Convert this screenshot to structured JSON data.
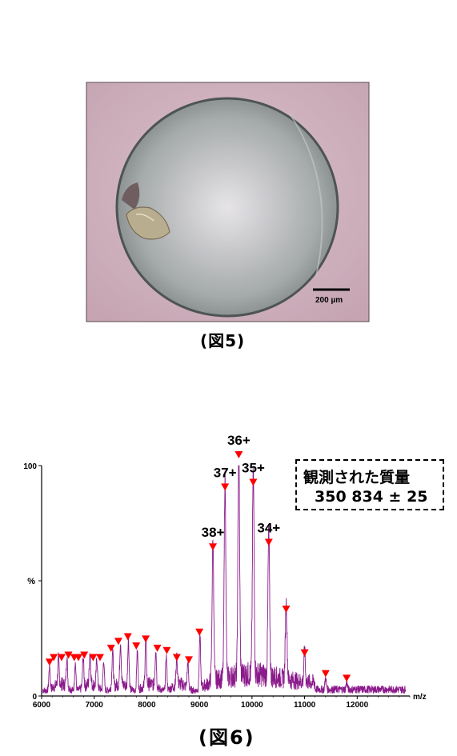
{
  "figure5": {
    "caption": "(図5)",
    "scale_bar_label": "200 µm"
  },
  "figure6": {
    "caption": "(図6)",
    "mass_box": {
      "line1": "観測された質量",
      "line2": "350 834 ± 25"
    },
    "chart_data": {
      "type": "line",
      "title": "",
      "xlabel": "m/z",
      "ylabel": "%",
      "xlim": [
        6000,
        13000
      ],
      "ylim": [
        0,
        100
      ],
      "x_ticks": [
        "6000",
        "7000",
        "8000",
        "9000",
        "10000",
        "11000",
        "12000"
      ],
      "y_ticks": [
        "0",
        "100"
      ],
      "y_mid_tick": "%",
      "colors": {
        "trace": "#8b1a8b",
        "markers": "#ff0000"
      },
      "charge_labels": [
        {
          "label": "38+",
          "mz": 9257,
          "intensity": 60
        },
        {
          "label": "37+",
          "mz": 9487,
          "intensity": 86
        },
        {
          "label": "36+",
          "mz": 9749,
          "intensity": 100
        },
        {
          "label": "35+",
          "mz": 10024,
          "intensity": 88
        },
        {
          "label": "34+",
          "mz": 10319,
          "intensity": 62
        }
      ],
      "peaks": [
        {
          "mz": 6150,
          "intensity": 10
        },
        {
          "mz": 6320,
          "intensity": 11
        },
        {
          "mz": 6480,
          "intensity": 13
        },
        {
          "mz": 6640,
          "intensity": 12
        },
        {
          "mz": 6790,
          "intensity": 13
        },
        {
          "mz": 6920,
          "intensity": 14
        },
        {
          "mz": 7050,
          "intensity": 12
        },
        {
          "mz": 7180,
          "intensity": 13
        },
        {
          "mz": 7350,
          "intensity": 16
        },
        {
          "mz": 7500,
          "intensity": 19
        },
        {
          "mz": 7650,
          "intensity": 21
        },
        {
          "mz": 7820,
          "intensity": 17
        },
        {
          "mz": 7980,
          "intensity": 20
        },
        {
          "mz": 8170,
          "intensity": 16
        },
        {
          "mz": 8370,
          "intensity": 15
        },
        {
          "mz": 8570,
          "intensity": 12
        },
        {
          "mz": 8780,
          "intensity": 11
        },
        {
          "mz": 9010,
          "intensity": 23
        },
        {
          "mz": 9257,
          "intensity": 60
        },
        {
          "mz": 9487,
          "intensity": 86
        },
        {
          "mz": 9749,
          "intensity": 100
        },
        {
          "mz": 10024,
          "intensity": 88
        },
        {
          "mz": 10319,
          "intensity": 62
        },
        {
          "mz": 10650,
          "intensity": 33
        },
        {
          "mz": 11000,
          "intensity": 14
        },
        {
          "mz": 11400,
          "intensity": 5
        },
        {
          "mz": 11800,
          "intensity": 3
        }
      ],
      "markers_mz": [
        6150,
        6230,
        6380,
        6510,
        6620,
        6700,
        6810,
        6980,
        7110,
        7320,
        7460,
        7640,
        7800,
        7980,
        8200,
        8380,
        8570,
        8800,
        9000,
        9257,
        9487,
        9749,
        10024,
        10319,
        10650,
        11000,
        11400,
        11800
      ]
    }
  }
}
